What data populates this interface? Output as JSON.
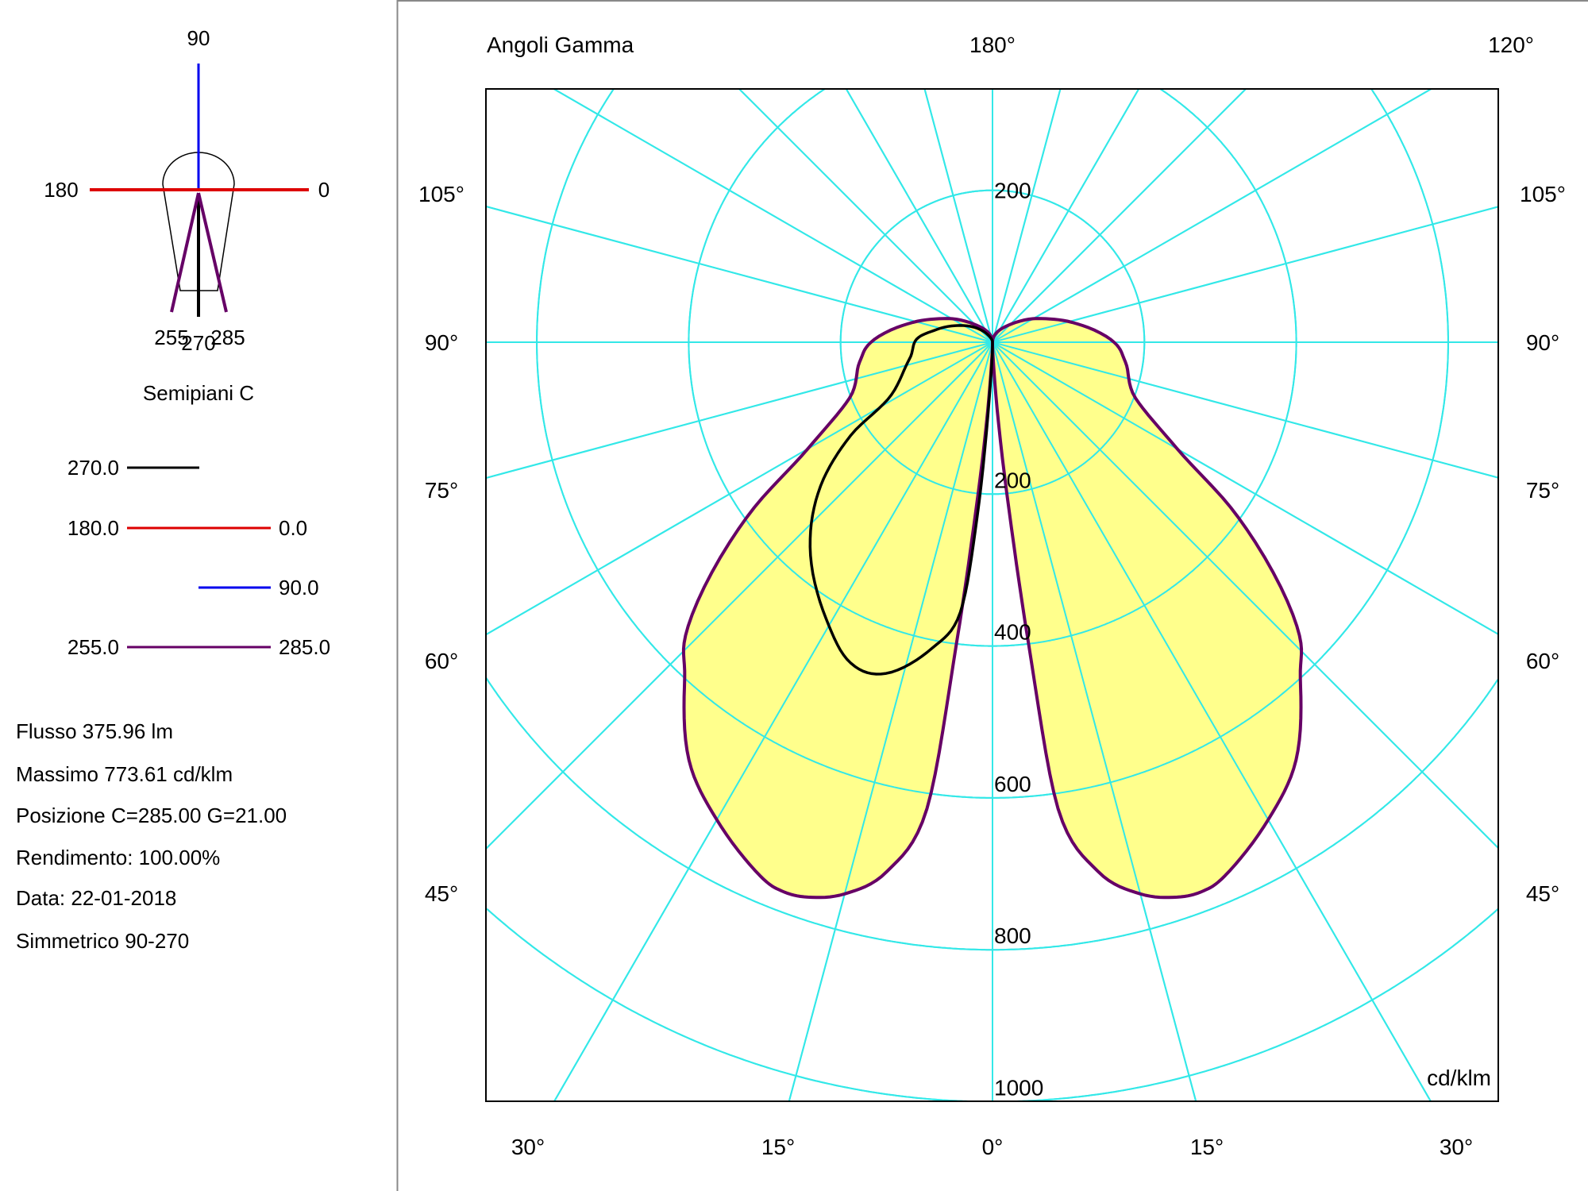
{
  "symbol": {
    "label_90": "90",
    "label_180": "180",
    "label_0": "0",
    "label_255": "255",
    "label_270": "270",
    "label_285": "285",
    "caption": "Semipiani C"
  },
  "legend": [
    {
      "left": "270.0",
      "right": "",
      "color": "#000000"
    },
    {
      "left": "180.0",
      "right": "0.0",
      "color": "#dd0000"
    },
    {
      "left": "",
      "right": "90.0",
      "color": "#0000ee"
    },
    {
      "left": "255.0",
      "right": "285.0",
      "color": "#660066"
    }
  ],
  "info": {
    "flusso": "Flusso 375.96  lm",
    "massimo": "Massimo 773.61  cd/klm",
    "posizione": "Posizione C=285.00 G=21.00",
    "rendimento": "Rendimento: 100.00%",
    "data": "Data: 22-01-2018",
    "simmetrico": "Simmetrico 90-270"
  },
  "chart_data": {
    "type": "polar",
    "title": "Angoli Gamma",
    "unit": "cd/klm",
    "top_labels": [
      "180°",
      "120°"
    ],
    "side_labels": [
      "105°",
      "90°",
      "75°",
      "60°",
      "45°"
    ],
    "bottom_labels": [
      "30°",
      "15°",
      "0°",
      "15°",
      "30°"
    ],
    "radial_ticks": [
      200,
      400,
      600,
      800,
      1000
    ],
    "top_radial_tick": "200",
    "angle_grid_step": 15,
    "grid": true,
    "colors": {
      "grid": "#33e8e8",
      "fill": "#ffff80",
      "c255_285": "#660066",
      "c270": "#000000"
    },
    "series": [
      {
        "name": "255.0 / 285.0",
        "side": "both",
        "filled": true,
        "points": [
          [
            0,
            0
          ],
          [
            3,
            40
          ],
          [
            5.4,
            199
          ],
          [
            6.8,
            397
          ],
          [
            8,
            620
          ],
          [
            11.3,
            711
          ],
          [
            15,
            752
          ],
          [
            18.4,
            770
          ],
          [
            21,
            774
          ],
          [
            23.6,
            766
          ],
          [
            30,
            726
          ],
          [
            36,
            680
          ],
          [
            42.5,
            600
          ],
          [
            47,
            548
          ],
          [
            54.5,
            398
          ],
          [
            60,
            281
          ],
          [
            68.7,
            202
          ],
          [
            81.5,
            177
          ],
          [
            90,
            160
          ],
          [
            104,
            108
          ],
          [
            117.8,
            67
          ],
          [
            140,
            27
          ],
          [
            180,
            0
          ]
        ]
      },
      {
        "name": "270.0",
        "side": "left",
        "filled": false,
        "points": [
          [
            0,
            0
          ],
          [
            3,
            60
          ],
          [
            5,
            230
          ],
          [
            6.8,
            358
          ],
          [
            11.2,
            411
          ],
          [
            17.8,
            458
          ],
          [
            23.8,
            462
          ],
          [
            31.2,
            424
          ],
          [
            41.7,
            361
          ],
          [
            50.1,
            295
          ],
          [
            56.7,
            223
          ],
          [
            62.5,
            150
          ],
          [
            78.3,
            112
          ],
          [
            92.3,
            100
          ],
          [
            103,
            75
          ],
          [
            122.6,
            40
          ],
          [
            150,
            10
          ],
          [
            180,
            0
          ]
        ]
      }
    ]
  }
}
